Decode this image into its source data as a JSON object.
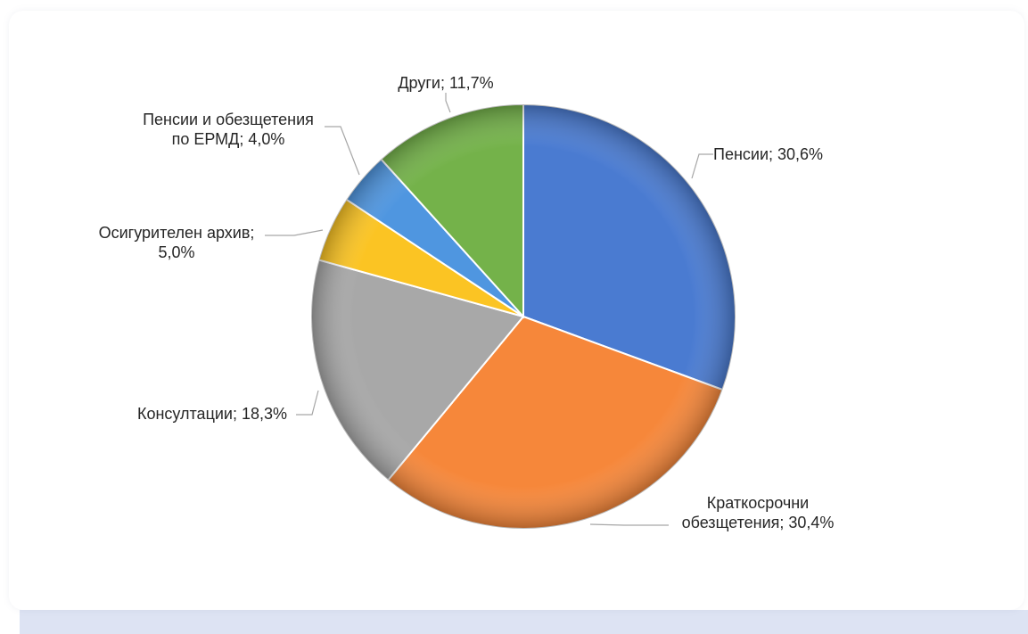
{
  "chart_data": {
    "type": "pie",
    "title": "",
    "slices": [
      {
        "name": "Пенсии",
        "value": 30.6,
        "label": [
          "Пенсии; 30,6%"
        ],
        "color": "#4a7bd1"
      },
      {
        "name": "Краткосрочни обезщетения",
        "value": 30.4,
        "label": [
          "Краткосрочни",
          "обезщетения; 30,4%"
        ],
        "color": "#f6873a"
      },
      {
        "name": "Консултации",
        "value": 18.3,
        "label": [
          "Консултации; 18,3%"
        ],
        "color": "#a8a8a8"
      },
      {
        "name": "Осигурителен архив",
        "value": 5.0,
        "label": [
          "Осигурителен архив;",
          "5,0%"
        ],
        "color": "#fbc423"
      },
      {
        "name": "Пенсии и обезщетения по ЕРМД",
        "value": 4.0,
        "label": [
          "Пенсии и обезщетения",
          "по ЕРМД; 4,0%"
        ],
        "color": "#4f96e0"
      },
      {
        "name": "Други",
        "value": 11.7,
        "label": [
          "Други; 11,7%"
        ],
        "color": "#74b24a"
      }
    ]
  }
}
